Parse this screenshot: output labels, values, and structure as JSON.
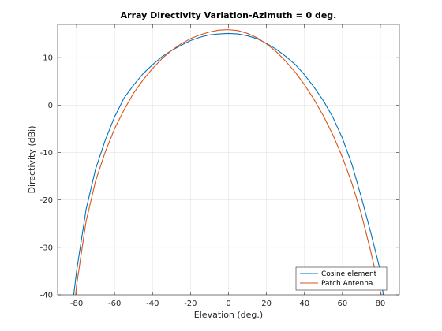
{
  "chart_data": {
    "type": "line",
    "title": "Array Directivity Variation-Azimuth = 0 deg.",
    "xlabel": "Elevation (deg.)",
    "ylabel": "Directivity (dBi)",
    "xlim": [
      -90,
      90
    ],
    "ylim": [
      -40,
      17
    ],
    "xticks": [
      -80,
      -60,
      -40,
      -20,
      0,
      20,
      40,
      60,
      80
    ],
    "yticks": [
      -40,
      -30,
      -20,
      -10,
      0,
      10
    ],
    "grid": true,
    "legend_position": "bottom-right",
    "series": [
      {
        "name": "Cosine element",
        "color": "#0072BD",
        "x": [
          -81.5,
          -80,
          -75,
          -70,
          -65,
          -60,
          -55,
          -50,
          -45,
          -40,
          -35,
          -30,
          -25,
          -20,
          -15,
          -10,
          -5,
          0,
          5,
          10,
          15,
          20,
          25,
          30,
          35,
          40,
          45,
          50,
          55,
          60,
          65,
          70,
          75,
          80,
          81.5
        ],
        "y": [
          -40,
          -35,
          -22,
          -13.5,
          -7.5,
          -2.5,
          1.5,
          4.2,
          6.6,
          8.5,
          10.2,
          11.5,
          12.6,
          13.6,
          14.3,
          14.8,
          15.0,
          15.1,
          15.0,
          14.6,
          14.0,
          13.0,
          11.8,
          10.3,
          8.6,
          6.4,
          3.8,
          0.9,
          -2.6,
          -7,
          -12.5,
          -19.5,
          -27,
          -35,
          -40
        ]
      },
      {
        "name": "Patch Antenna",
        "color": "#D95319",
        "x": [
          -80.5,
          -80,
          -75,
          -70,
          -65,
          -60,
          -55,
          -50,
          -45,
          -40,
          -35,
          -30,
          -25,
          -20,
          -15,
          -10,
          -5,
          0,
          5,
          10,
          15,
          20,
          25,
          30,
          35,
          40,
          45,
          50,
          55,
          60,
          65,
          70,
          75,
          79,
          80.5
        ],
        "y": [
          -40,
          -38,
          -24.5,
          -16,
          -10,
          -5,
          -1,
          2.5,
          5.3,
          7.7,
          9.8,
          11.5,
          12.9,
          14.0,
          14.8,
          15.4,
          15.8,
          15.9,
          15.7,
          15.1,
          14.2,
          12.9,
          11.3,
          9.3,
          7.0,
          4.3,
          1.2,
          -2.3,
          -6.3,
          -11,
          -16.5,
          -23,
          -31,
          -38,
          -40
        ]
      }
    ]
  }
}
